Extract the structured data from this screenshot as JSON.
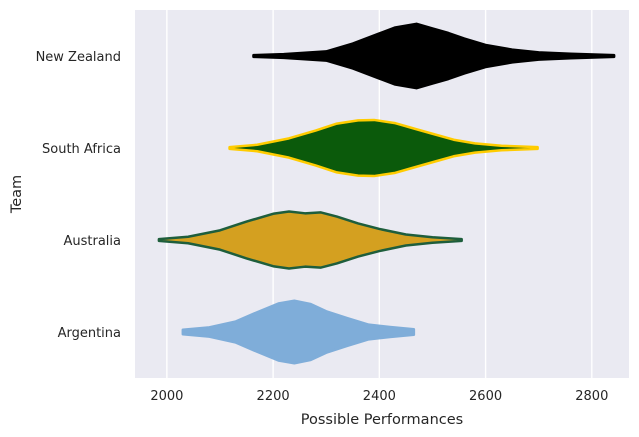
{
  "chart_data": {
    "type": "violin",
    "orientation": "horizontal",
    "title": "",
    "xlabel": "Possible Performances",
    "ylabel": "Team",
    "xlim": [
      1940,
      2870
    ],
    "xticks": [
      2000,
      2200,
      2400,
      2600,
      2800
    ],
    "grid": true,
    "background": "#eaeaf2",
    "series": [
      {
        "name": "New Zealand",
        "fill": "#000000",
        "edge": "#000000",
        "min": 2163,
        "max": 2842,
        "density": [
          [
            2163,
            0.02
          ],
          [
            2220,
            0.04
          ],
          [
            2300,
            0.1
          ],
          [
            2350,
            0.27
          ],
          [
            2400,
            0.49
          ],
          [
            2430,
            0.62
          ],
          [
            2470,
            0.7
          ],
          [
            2500,
            0.6
          ],
          [
            2530,
            0.5
          ],
          [
            2560,
            0.38
          ],
          [
            2600,
            0.24
          ],
          [
            2650,
            0.14
          ],
          [
            2700,
            0.08
          ],
          [
            2760,
            0.05
          ],
          [
            2842,
            0.02
          ]
        ]
      },
      {
        "name": "South Africa",
        "fill": "#0b5a0b",
        "edge": "#ffcc00",
        "min": 2118,
        "max": 2698,
        "density": [
          [
            2118,
            0.02
          ],
          [
            2170,
            0.07
          ],
          [
            2230,
            0.21
          ],
          [
            2280,
            0.38
          ],
          [
            2320,
            0.53
          ],
          [
            2360,
            0.6
          ],
          [
            2390,
            0.61
          ],
          [
            2430,
            0.54
          ],
          [
            2460,
            0.44
          ],
          [
            2500,
            0.31
          ],
          [
            2540,
            0.18
          ],
          [
            2580,
            0.1
          ],
          [
            2630,
            0.05
          ],
          [
            2698,
            0.02
          ]
        ]
      },
      {
        "name": "Australia",
        "fill": "#d4a020",
        "edge": "#1e5e3c",
        "min": 1985,
        "max": 2555,
        "density": [
          [
            1985,
            0.02
          ],
          [
            2040,
            0.07
          ],
          [
            2100,
            0.21
          ],
          [
            2150,
            0.4
          ],
          [
            2200,
            0.57
          ],
          [
            2230,
            0.62
          ],
          [
            2260,
            0.58
          ],
          [
            2290,
            0.6
          ],
          [
            2320,
            0.51
          ],
          [
            2360,
            0.36
          ],
          [
            2400,
            0.24
          ],
          [
            2450,
            0.12
          ],
          [
            2500,
            0.06
          ],
          [
            2555,
            0.02
          ]
        ]
      },
      {
        "name": "Argentina",
        "fill": "#7fadd9",
        "edge": "#7fadd9",
        "min": 2030,
        "max": 2465,
        "density": [
          [
            2030,
            0.05
          ],
          [
            2080,
            0.1
          ],
          [
            2130,
            0.23
          ],
          [
            2170,
            0.43
          ],
          [
            2210,
            0.62
          ],
          [
            2240,
            0.68
          ],
          [
            2270,
            0.61
          ],
          [
            2300,
            0.45
          ],
          [
            2340,
            0.3
          ],
          [
            2380,
            0.16
          ],
          [
            2420,
            0.11
          ],
          [
            2465,
            0.06
          ]
        ]
      }
    ]
  }
}
